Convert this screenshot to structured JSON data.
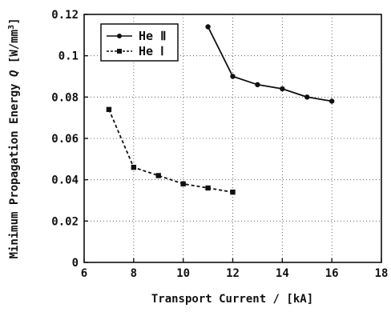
{
  "chart_data": {
    "type": "line",
    "xlabel": "Transport Current / [kA]",
    "ylabel_prefix": "Minimum Propagation Energy ",
    "ylabel_symbol": "Q",
    "ylabel_unit": " [W/mm",
    "ylabel_sup": "3",
    "ylabel_end": "]",
    "xlim": [
      6,
      18
    ],
    "ylim": [
      0,
      0.12
    ],
    "xticks": [
      6,
      8,
      10,
      12,
      14,
      16,
      18
    ],
    "xtick_labels": [
      "6",
      "8",
      "10",
      "12",
      "14",
      "16",
      "18"
    ],
    "yticks": [
      0,
      0.02,
      0.04,
      0.06,
      0.08,
      0.1,
      0.12
    ],
    "ytick_labels": [
      "0",
      "0.02",
      "0.04",
      "0.06",
      "0.08",
      "0.1",
      "0.12"
    ],
    "grid": "dotted",
    "legend_position": "top-left",
    "series": [
      {
        "name": "He Ⅱ",
        "marker": "circle",
        "line": "solid",
        "x": [
          11,
          12,
          13,
          14,
          15,
          16
        ],
        "y": [
          0.114,
          0.09,
          0.086,
          0.084,
          0.08,
          0.078
        ]
      },
      {
        "name": "He Ⅰ",
        "marker": "square",
        "line": "dashed",
        "x": [
          7,
          8,
          9,
          10,
          11,
          12
        ],
        "y": [
          0.074,
          0.046,
          0.042,
          0.038,
          0.036,
          0.034
        ]
      }
    ]
  }
}
